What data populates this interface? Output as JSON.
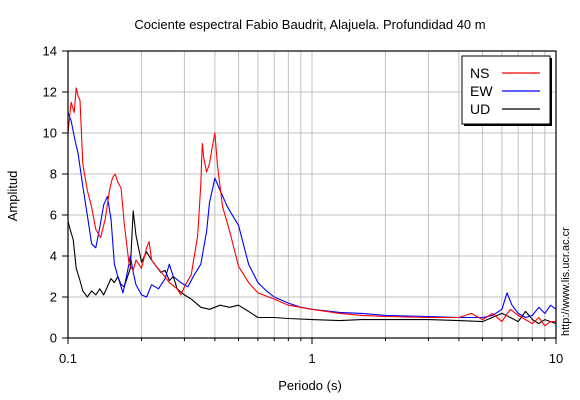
{
  "chart_data": {
    "type": "line",
    "title": "Cociente espectral Fabio Baudrit, Alajuela. Profundidad 40 m",
    "xlabel": "Periodo (s)",
    "ylabel": "Amplitud",
    "x_scale": "log",
    "xlim": [
      0.1,
      10
    ],
    "ylim": [
      0,
      14
    ],
    "x_ticks": [
      {
        "value": 0.1,
        "label": "0.1"
      },
      {
        "value": 1,
        "label": "1"
      },
      {
        "value": 10,
        "label": "10"
      }
    ],
    "y_ticks": [
      0,
      2,
      4,
      6,
      8,
      10,
      12,
      14
    ],
    "grid": true,
    "legend_position": "top-right",
    "annotation": "http://www.lis.ucr.ac.cr",
    "series": [
      {
        "name": "NS",
        "color": "#ff0000",
        "points": [
          [
            0.1,
            10.0
          ],
          [
            0.103,
            11.5
          ],
          [
            0.106,
            11.0
          ],
          [
            0.108,
            12.2
          ],
          [
            0.11,
            11.8
          ],
          [
            0.112,
            11.6
          ],
          [
            0.115,
            8.5
          ],
          [
            0.12,
            7.2
          ],
          [
            0.125,
            6.4
          ],
          [
            0.13,
            5.3
          ],
          [
            0.136,
            4.9
          ],
          [
            0.142,
            5.8
          ],
          [
            0.148,
            7.2
          ],
          [
            0.152,
            7.8
          ],
          [
            0.156,
            8.0
          ],
          [
            0.16,
            7.6
          ],
          [
            0.165,
            7.3
          ],
          [
            0.17,
            5.6
          ],
          [
            0.178,
            3.6
          ],
          [
            0.185,
            3.3
          ],
          [
            0.19,
            3.8
          ],
          [
            0.2,
            3.4
          ],
          [
            0.21,
            4.4
          ],
          [
            0.215,
            4.7
          ],
          [
            0.22,
            3.8
          ],
          [
            0.23,
            3.5
          ],
          [
            0.245,
            3.1
          ],
          [
            0.26,
            2.7
          ],
          [
            0.28,
            2.4
          ],
          [
            0.29,
            2.1
          ],
          [
            0.3,
            2.5
          ],
          [
            0.32,
            3.1
          ],
          [
            0.34,
            5.0
          ],
          [
            0.35,
            7.5
          ],
          [
            0.355,
            9.5
          ],
          [
            0.36,
            8.8
          ],
          [
            0.37,
            8.1
          ],
          [
            0.38,
            8.5
          ],
          [
            0.39,
            9.3
          ],
          [
            0.4,
            10.0
          ],
          [
            0.41,
            8.4
          ],
          [
            0.43,
            6.4
          ],
          [
            0.46,
            5.2
          ],
          [
            0.5,
            3.5
          ],
          [
            0.55,
            2.7
          ],
          [
            0.6,
            2.2
          ],
          [
            0.7,
            1.9
          ],
          [
            0.8,
            1.6
          ],
          [
            1.0,
            1.4
          ],
          [
            1.3,
            1.2
          ],
          [
            1.6,
            1.1
          ],
          [
            2.0,
            1.05
          ],
          [
            3.0,
            1.0
          ],
          [
            4.0,
            1.0
          ],
          [
            4.5,
            1.2
          ],
          [
            5.0,
            0.9
          ],
          [
            5.5,
            1.2
          ],
          [
            6.0,
            0.8
          ],
          [
            6.5,
            1.4
          ],
          [
            7.0,
            1.1
          ],
          [
            7.5,
            0.9
          ],
          [
            8.0,
            0.7
          ],
          [
            8.5,
            1.0
          ],
          [
            9.0,
            0.6
          ],
          [
            9.5,
            0.8
          ],
          [
            10.0,
            0.8
          ]
        ]
      },
      {
        "name": "EW",
        "color": "#0000ff",
        "points": [
          [
            0.1,
            11.0
          ],
          [
            0.103,
            10.6
          ],
          [
            0.107,
            9.6
          ],
          [
            0.11,
            9.0
          ],
          [
            0.115,
            7.4
          ],
          [
            0.12,
            6.0
          ],
          [
            0.125,
            4.6
          ],
          [
            0.13,
            4.4
          ],
          [
            0.135,
            5.4
          ],
          [
            0.14,
            6.5
          ],
          [
            0.145,
            6.9
          ],
          [
            0.15,
            5.8
          ],
          [
            0.155,
            3.6
          ],
          [
            0.16,
            3.0
          ],
          [
            0.168,
            2.2
          ],
          [
            0.175,
            3.2
          ],
          [
            0.18,
            4.0
          ],
          [
            0.185,
            3.2
          ],
          [
            0.19,
            2.6
          ],
          [
            0.2,
            2.1
          ],
          [
            0.21,
            2.0
          ],
          [
            0.22,
            2.6
          ],
          [
            0.235,
            2.4
          ],
          [
            0.25,
            2.9
          ],
          [
            0.26,
            3.6
          ],
          [
            0.27,
            3.0
          ],
          [
            0.29,
            2.7
          ],
          [
            0.31,
            2.5
          ],
          [
            0.33,
            3.1
          ],
          [
            0.35,
            3.6
          ],
          [
            0.37,
            5.2
          ],
          [
            0.38,
            6.6
          ],
          [
            0.4,
            7.8
          ],
          [
            0.42,
            7.2
          ],
          [
            0.45,
            6.4
          ],
          [
            0.5,
            5.5
          ],
          [
            0.55,
            3.6
          ],
          [
            0.6,
            2.7
          ],
          [
            0.65,
            2.3
          ],
          [
            0.7,
            2.0
          ],
          [
            0.8,
            1.7
          ],
          [
            0.9,
            1.5
          ],
          [
            1.0,
            1.4
          ],
          [
            1.3,
            1.25
          ],
          [
            1.6,
            1.2
          ],
          [
            2.0,
            1.1
          ],
          [
            3.0,
            1.05
          ],
          [
            4.0,
            1.0
          ],
          [
            5.0,
            1.0
          ],
          [
            5.5,
            1.1
          ],
          [
            6.0,
            1.4
          ],
          [
            6.3,
            2.2
          ],
          [
            6.6,
            1.6
          ],
          [
            7.0,
            1.2
          ],
          [
            7.5,
            1.0
          ],
          [
            8.0,
            1.1
          ],
          [
            8.5,
            1.5
          ],
          [
            9.0,
            1.2
          ],
          [
            9.5,
            1.6
          ],
          [
            10.0,
            1.4
          ]
        ]
      },
      {
        "name": "UD",
        "color": "#000000",
        "points": [
          [
            0.1,
            5.7
          ],
          [
            0.102,
            5.3
          ],
          [
            0.105,
            4.8
          ],
          [
            0.108,
            3.4
          ],
          [
            0.112,
            2.8
          ],
          [
            0.115,
            2.3
          ],
          [
            0.12,
            2.0
          ],
          [
            0.125,
            2.3
          ],
          [
            0.13,
            2.1
          ],
          [
            0.135,
            2.4
          ],
          [
            0.14,
            2.1
          ],
          [
            0.15,
            2.9
          ],
          [
            0.155,
            2.7
          ],
          [
            0.16,
            3.0
          ],
          [
            0.165,
            2.6
          ],
          [
            0.17,
            2.5
          ],
          [
            0.18,
            3.4
          ],
          [
            0.185,
            6.2
          ],
          [
            0.19,
            5.0
          ],
          [
            0.2,
            3.7
          ],
          [
            0.21,
            4.2
          ],
          [
            0.22,
            3.8
          ],
          [
            0.23,
            3.5
          ],
          [
            0.24,
            3.2
          ],
          [
            0.25,
            3.3
          ],
          [
            0.26,
            2.8
          ],
          [
            0.27,
            3.0
          ],
          [
            0.28,
            2.4
          ],
          [
            0.3,
            2.1
          ],
          [
            0.32,
            1.9
          ],
          [
            0.35,
            1.5
          ],
          [
            0.38,
            1.4
          ],
          [
            0.42,
            1.6
          ],
          [
            0.46,
            1.5
          ],
          [
            0.5,
            1.6
          ],
          [
            0.55,
            1.3
          ],
          [
            0.6,
            1.0
          ],
          [
            0.7,
            1.0
          ],
          [
            0.8,
            0.95
          ],
          [
            1.0,
            0.9
          ],
          [
            1.3,
            0.85
          ],
          [
            1.6,
            0.9
          ],
          [
            2.0,
            0.9
          ],
          [
            3.0,
            0.9
          ],
          [
            4.0,
            0.85
          ],
          [
            5.0,
            0.8
          ],
          [
            6.0,
            1.2
          ],
          [
            6.5,
            1.0
          ],
          [
            7.0,
            0.8
          ],
          [
            7.5,
            1.3
          ],
          [
            8.0,
            0.9
          ],
          [
            8.5,
            0.7
          ],
          [
            9.0,
            0.9
          ],
          [
            9.5,
            0.8
          ],
          [
            10.0,
            0.7
          ]
        ]
      }
    ]
  }
}
